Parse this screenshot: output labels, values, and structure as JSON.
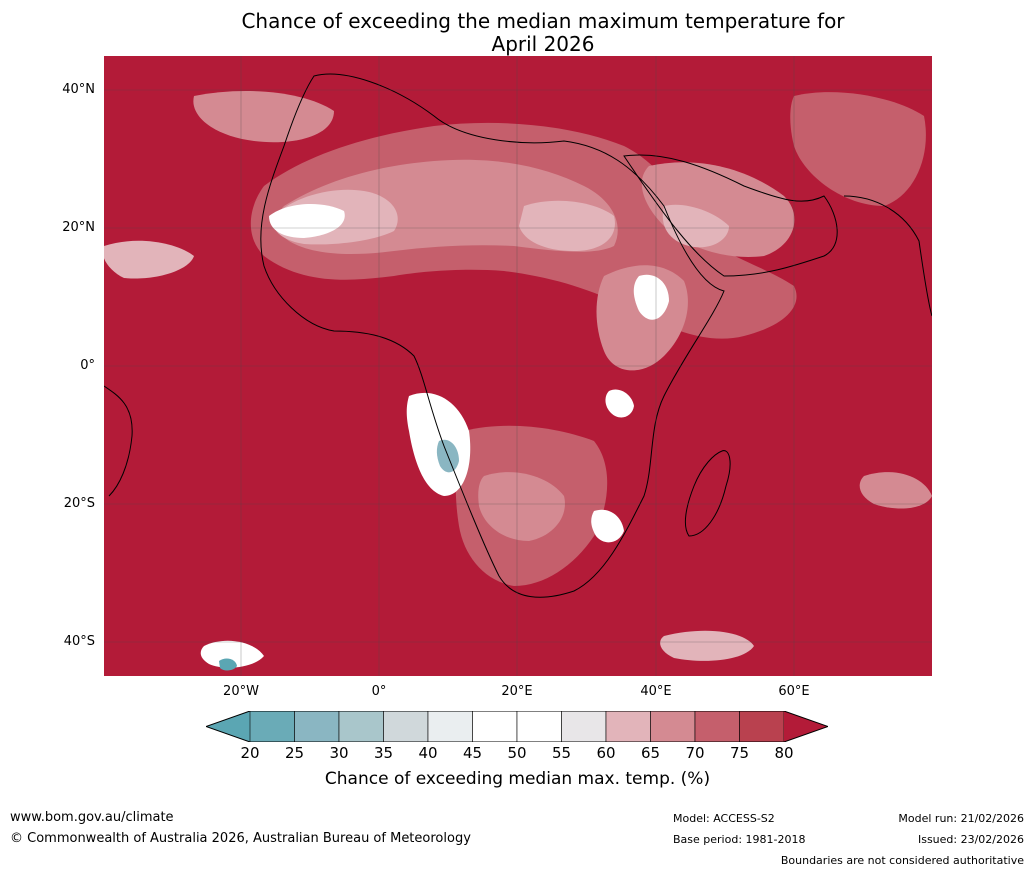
{
  "title_line1": "Chance of exceeding the median maximum temperature for",
  "title_line2": "April 2026",
  "map": {
    "lat_labels": [
      "40°N",
      "20°N",
      "0°",
      "20°S",
      "40°S"
    ],
    "lon_labels": [
      "20°W",
      "0°",
      "20°E",
      "40°E",
      "60°E"
    ],
    "land_color": "#b31b38",
    "grid_color": "#4a4a4a"
  },
  "colorbar": {
    "ticks": [
      "20",
      "25",
      "30",
      "35",
      "40",
      "45",
      "50",
      "55",
      "60",
      "65",
      "70",
      "75",
      "80"
    ],
    "colors": [
      "#5ba6b3",
      "#6aabb7",
      "#8ab6c2",
      "#a9c6cb",
      "#d0d8db",
      "#eaeef0",
      "#ffffff",
      "#ffffff",
      "#e8e6e8",
      "#e2b4ba",
      "#d48a92",
      "#c55f6c",
      "#b9414f",
      "#b31b38"
    ],
    "label": "Chance of exceeding median max. temp. (%)"
  },
  "footer": {
    "website": "www.bom.gov.au/climate",
    "copyright": "© Commonwealth of Australia 2026, Australian Bureau of Meteorology",
    "model": "Model: ACCESS-S2",
    "base_period": "Base period: 1981-2018",
    "model_run": "Model run: 21/02/2026",
    "issued": "Issued: 23/02/2026",
    "disclaimer": "Boundaries are not considered authoritative"
  }
}
